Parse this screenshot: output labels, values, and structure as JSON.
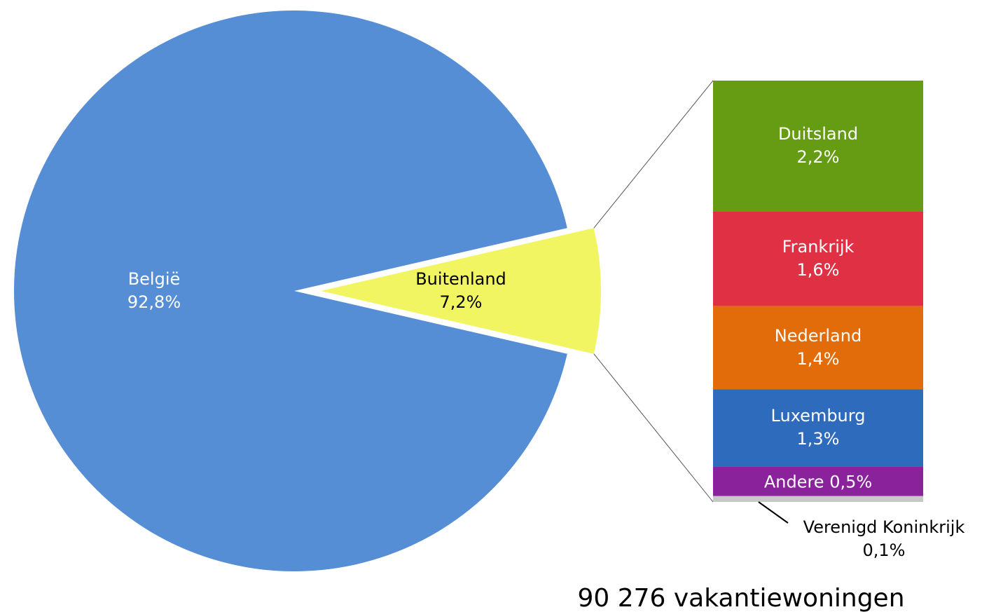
{
  "chart_data": {
    "type": "pie",
    "categories": [
      "België",
      "Buitenland"
    ],
    "values": [
      92.8,
      7.2
    ],
    "value_labels": [
      "92,8%",
      "7,2%"
    ],
    "colors": [
      "#558ed5",
      "#f2f562"
    ],
    "breakdown": {
      "categories": [
        "Duitsland",
        "Frankrijk",
        "Nederland",
        "Luxemburg",
        "Andere",
        "Verenigd Koninkrijk"
      ],
      "values": [
        2.2,
        1.6,
        1.4,
        1.3,
        0.5,
        0.1
      ],
      "value_labels": [
        "2,2%",
        "1,6%",
        "1,4%",
        "1,3%",
        "0,5%",
        "0,1%"
      ],
      "colors": [
        "#669c14",
        "#e03044",
        "#e36c0a",
        "#2e6bbd",
        "#8a229b",
        "#c8c8c8"
      ]
    },
    "annotation": "90 276 vakantiewoningen"
  }
}
